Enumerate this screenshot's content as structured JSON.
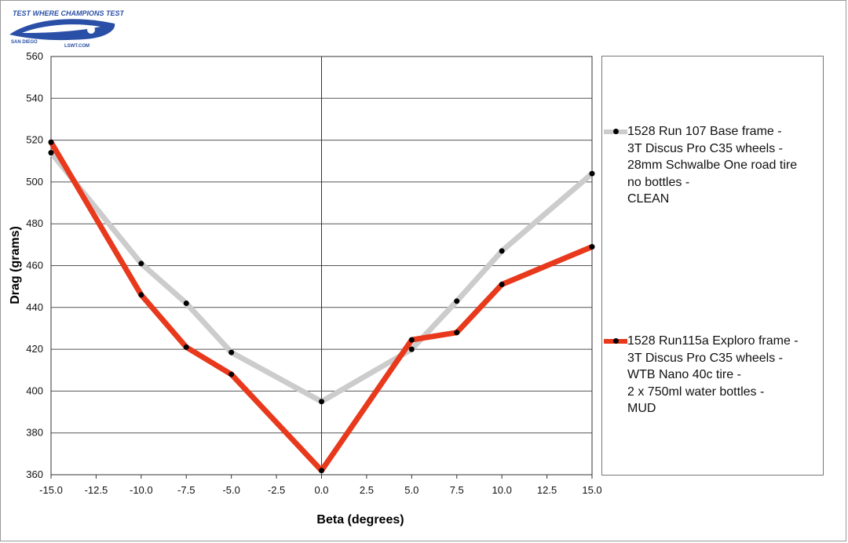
{
  "logo": {
    "top_text": "TEST WHERE CHAMPIONS TEST",
    "left_text": "SAN DIEGO",
    "right_text": "LSWT.COM",
    "color": "#2a4fa6"
  },
  "chart_data": {
    "type": "line",
    "xlabel": "Beta (degrees)",
    "ylabel": "Drag (grams)",
    "xlim": [
      -15,
      15
    ],
    "ylim": [
      360,
      560
    ],
    "x_ticks": [
      "-15.0",
      "-12.5",
      "-10.0",
      "-7.5",
      "-5.0",
      "-2.5",
      "0.0",
      "2.5",
      "5.0",
      "7.5",
      "10.0",
      "12.5",
      "15.0"
    ],
    "y_ticks": [
      "560",
      "540",
      "520",
      "500",
      "480",
      "460",
      "440",
      "420",
      "400",
      "380",
      "360"
    ],
    "grid": "horizontal",
    "legend_position": "right",
    "series": [
      {
        "name": "1528 Run 107 Base frame -\n3T Discus Pro C35 wheels -\n28mm Schwalbe One road tire\nno bottles -\nCLEAN",
        "color": "#cccccc",
        "points": [
          [
            -15,
            514
          ],
          [
            -10,
            461
          ],
          [
            -7.5,
            442
          ],
          [
            -5,
            418.5
          ],
          [
            0,
            395
          ],
          [
            5,
            420
          ],
          [
            7.5,
            443
          ],
          [
            10,
            467
          ],
          [
            15,
            504
          ]
        ]
      },
      {
        "name": "1528 Run115a Exploro frame -\n3T Discus Pro C35 wheels -\nWTB Nano 40c tire -\n2 x 750ml water bottles -\nMUD",
        "color": "#e8391c",
        "points": [
          [
            -15,
            519
          ],
          [
            -10,
            446
          ],
          [
            -7.5,
            421
          ],
          [
            -5,
            408
          ],
          [
            0,
            362
          ],
          [
            5,
            424.5
          ],
          [
            7.5,
            428
          ],
          [
            10,
            451
          ],
          [
            15,
            469
          ]
        ]
      }
    ]
  }
}
